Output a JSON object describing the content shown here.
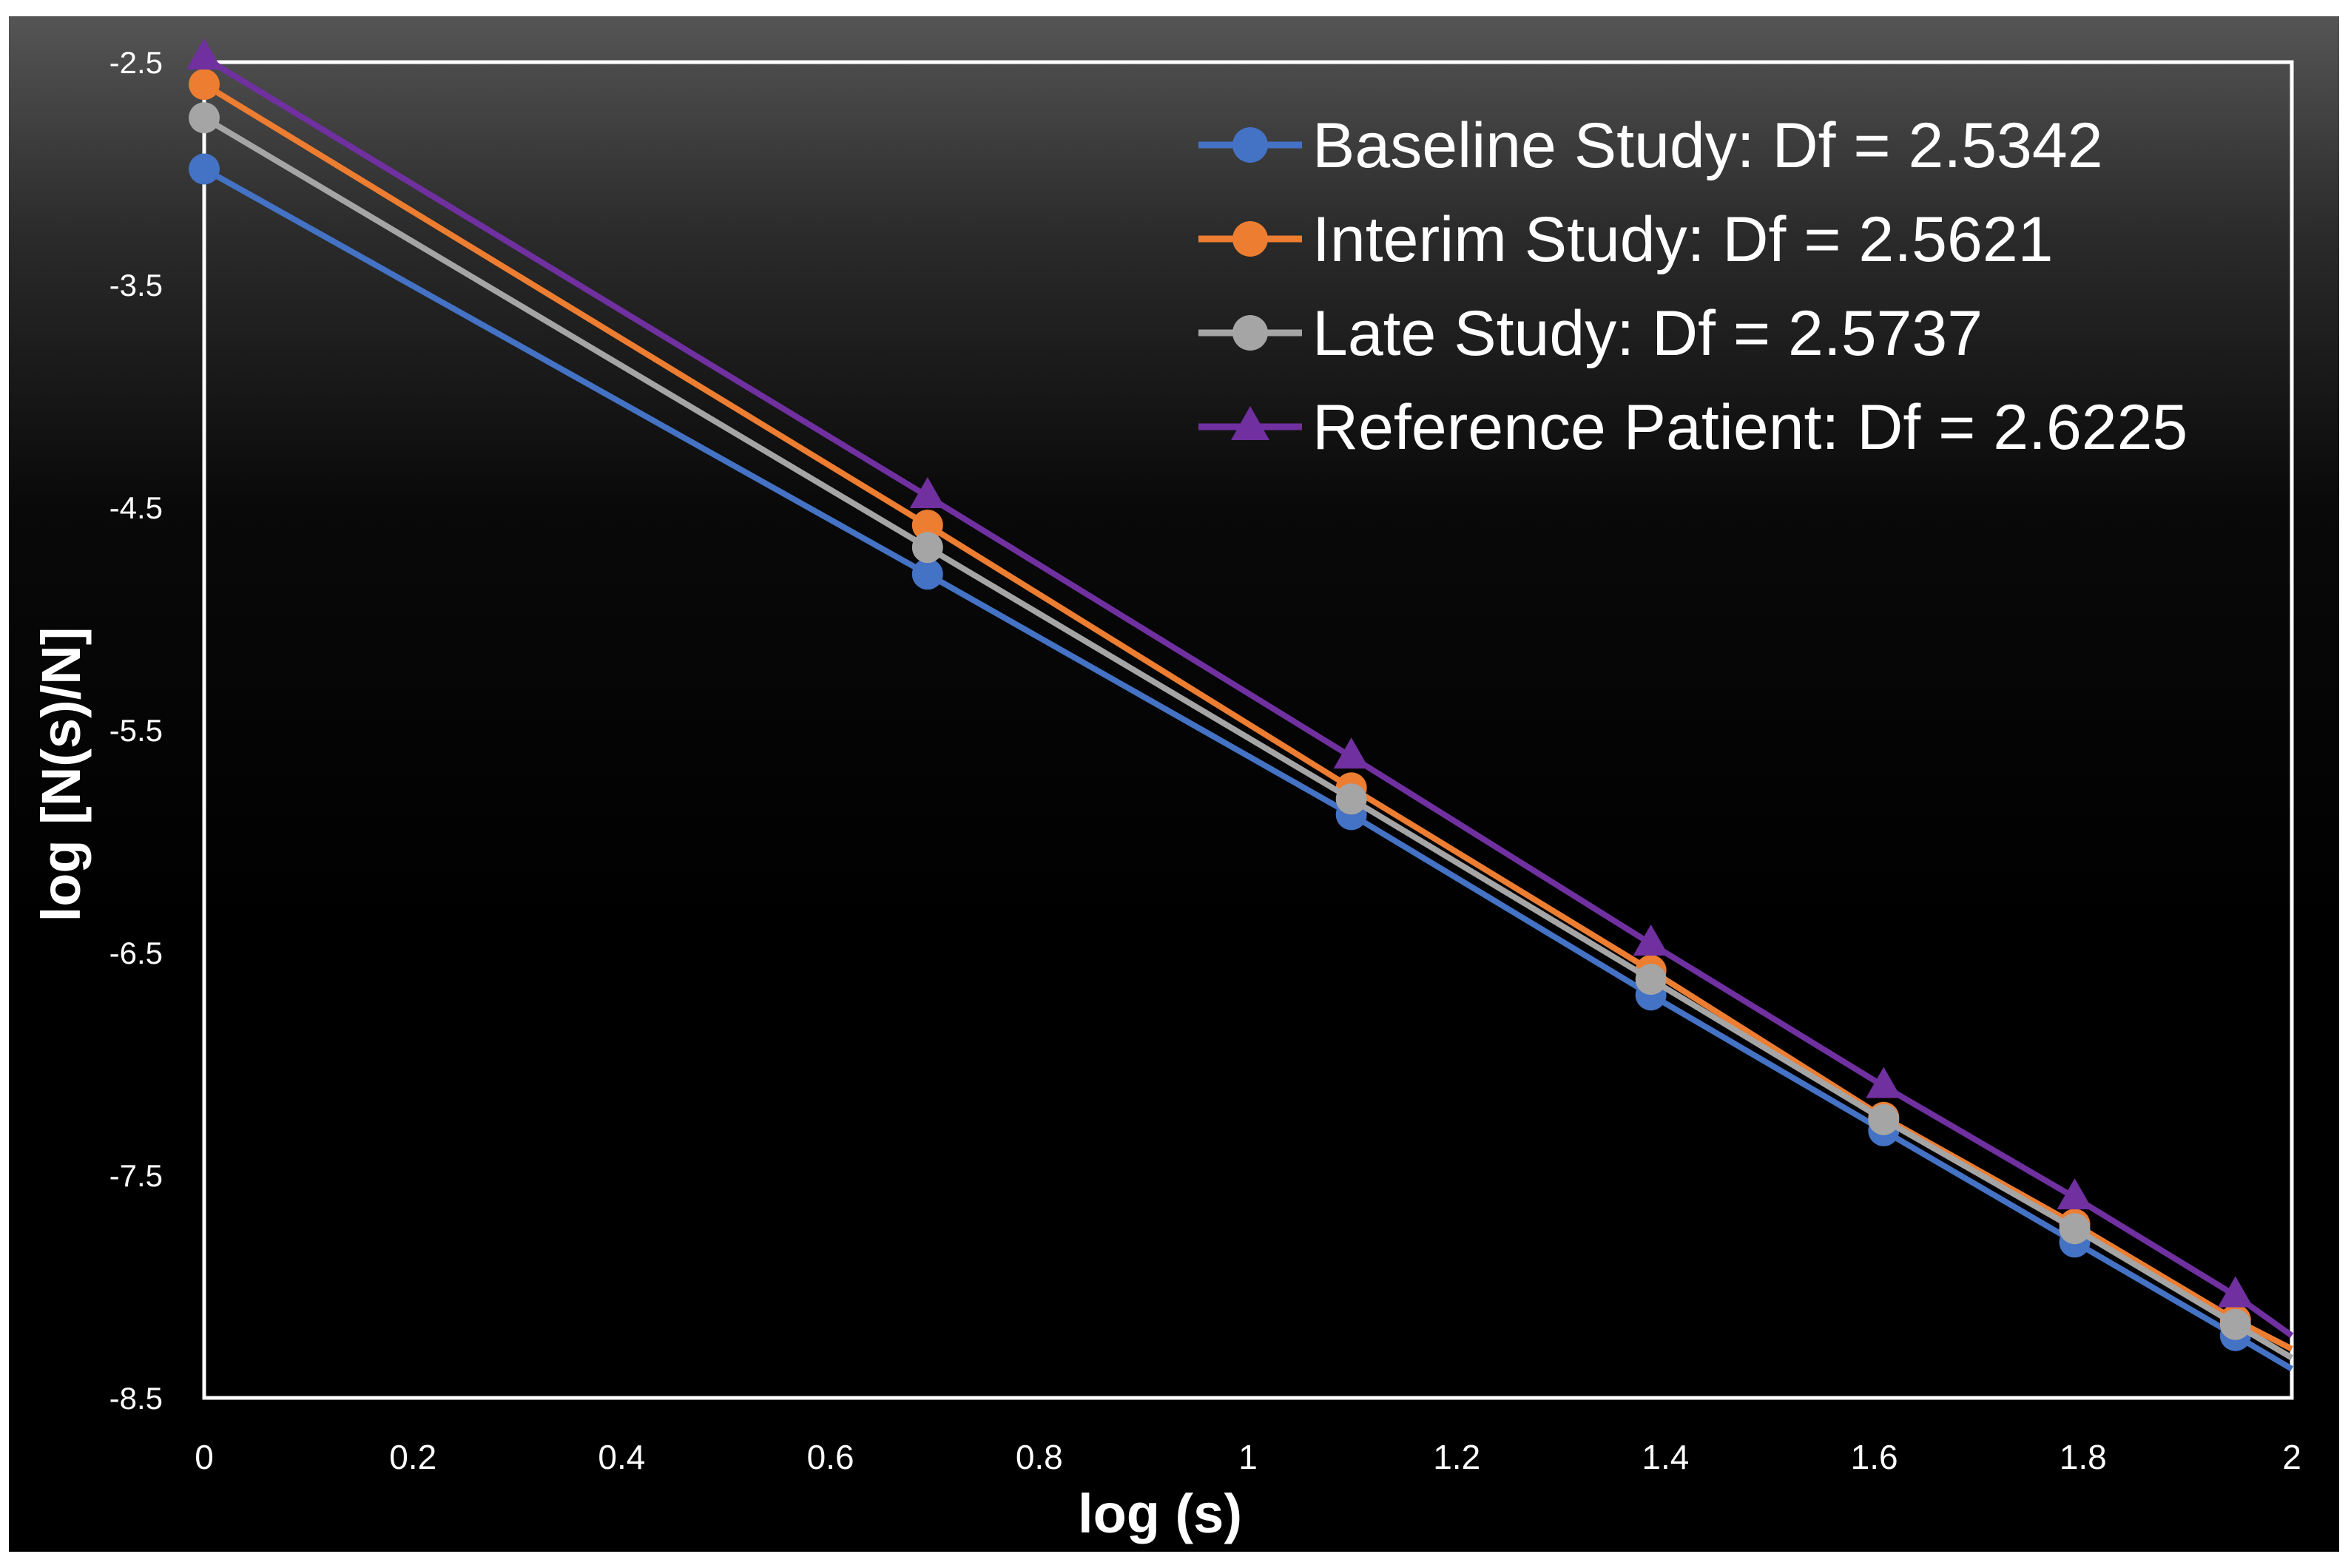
{
  "chart_data": {
    "type": "line",
    "title": "",
    "xlabel": "log (s)",
    "ylabel": "log [N(s)/N]",
    "xlim": [
      0,
      2
    ],
    "ylim": [
      -8.5,
      -2.5
    ],
    "x_ticks": [
      "0",
      "0.2",
      "0.4",
      "0.6",
      "0.8",
      "1",
      "1.2",
      "1.4",
      "1.6",
      "1.8",
      "2"
    ],
    "y_ticks": [
      "-2.5",
      "-3.5",
      "-4.5",
      "-5.5",
      "-6.5",
      "-7.5",
      "-8.5"
    ],
    "grid": false,
    "legend_position": "top-right",
    "x": [
      0,
      0.693,
      1.099,
      1.386,
      1.609,
      1.792,
      1.946
    ],
    "series": [
      {
        "name": "Baseline Study: Df = 2.5342",
        "marker": "circle",
        "color": "#4472C4",
        "values": [
          -2.98,
          -4.8,
          -5.88,
          -6.69,
          -7.3,
          -7.8,
          -8.22
        ],
        "trend_end": [
          2,
          -8.37
        ]
      },
      {
        "name": "Interim Study: Df = 2.5621",
        "marker": "circle",
        "color": "#ED7D31",
        "values": [
          -2.6,
          -4.58,
          -5.76,
          -6.58,
          -7.24,
          -7.72,
          -8.15
        ],
        "trend_end": [
          2,
          -8.28
        ]
      },
      {
        "name": "Late Study: Df = 2.5737",
        "marker": "circle",
        "color": "#A5A5A5",
        "values": [
          -2.75,
          -4.68,
          -5.81,
          -6.62,
          -7.25,
          -7.74,
          -8.17
        ],
        "trend_end": [
          2,
          -8.32
        ]
      },
      {
        "name": "Reference Patient: Df = 2.6225",
        "marker": "triangle",
        "color": "#7030A0",
        "values": [
          -2.48,
          -4.45,
          -5.62,
          -6.46,
          -7.1,
          -7.6,
          -8.04
        ],
        "trend_end": [
          2,
          -8.22
        ]
      }
    ]
  }
}
